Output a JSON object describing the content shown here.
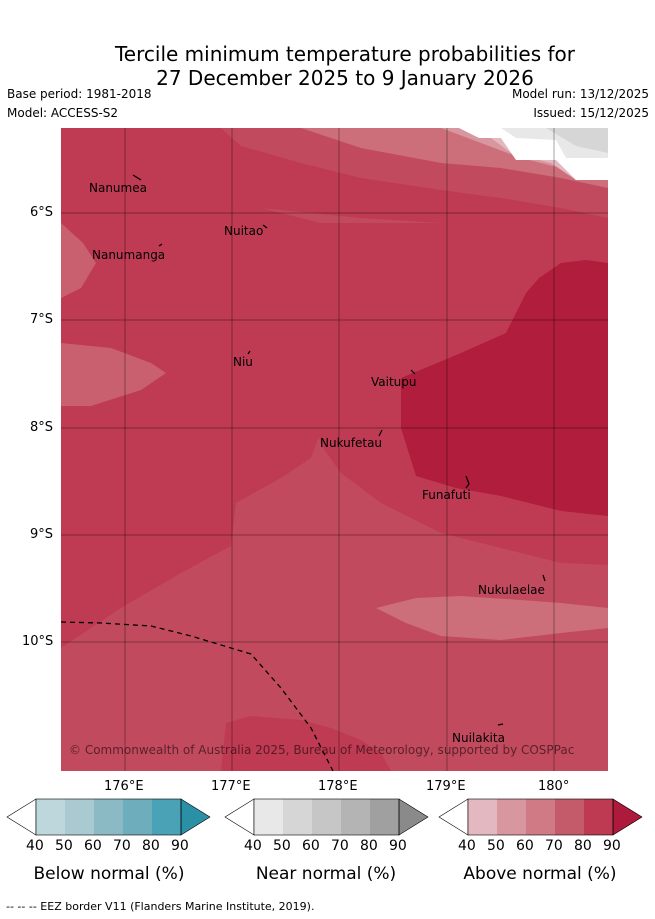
{
  "title": {
    "line1": "Tercile minimum temperature probabilities for",
    "line2": "27 December 2025 to 9 January 2026"
  },
  "meta": {
    "base_period": "Base period: 1981-2018",
    "model": "Model: ACCESS-S2",
    "model_run": "Model run: 13/12/2025",
    "issued": "Issued: 15/12/2025"
  },
  "map": {
    "lat_ticks": [
      "6°S",
      "7°S",
      "8°S",
      "9°S",
      "10°S"
    ],
    "lon_ticks": [
      "176°E",
      "177°E",
      "178°E",
      "179°E",
      "180°"
    ],
    "places": [
      "Nanumea",
      "Nuitao",
      "Nanumanga",
      "Niu",
      "Vaitupu",
      "Nukufetau",
      "Funafuti",
      "Nukulaelae",
      "Nuilakita"
    ],
    "copyright": "© Commonwealth of Australia 2025, Bureau of Meteorology, supported by COSPPac"
  },
  "colorbars": [
    {
      "title": "Below normal (%)",
      "labels": [
        "40",
        "50",
        "60",
        "70",
        "80",
        "90"
      ],
      "colors": [
        "#ffffff",
        "#bed7dd",
        "#a8cad0",
        "#8bb9c4",
        "#6dadbc",
        "#49a2b5",
        "#2b8fa6"
      ]
    },
    {
      "title": "Near normal (%)",
      "labels": [
        "40",
        "50",
        "60",
        "70",
        "80",
        "90"
      ],
      "colors": [
        "#ffffff",
        "#e8e8e8",
        "#d6d6d6",
        "#c6c6c6",
        "#b4b4b4",
        "#a0a0a0",
        "#8a8a8a"
      ]
    },
    {
      "title": "Above normal (%)",
      "labels": [
        "40",
        "50",
        "60",
        "70",
        "80",
        "90"
      ],
      "colors": [
        "#ffffff",
        "#e4b8c0",
        "#d8969e",
        "#cf7a84",
        "#c45b6b",
        "#bd3a52",
        "#ad1a3b"
      ]
    }
  ],
  "footer": "--  --  -- EEZ border V11 (Flanders Marine Institute, 2019)."
}
